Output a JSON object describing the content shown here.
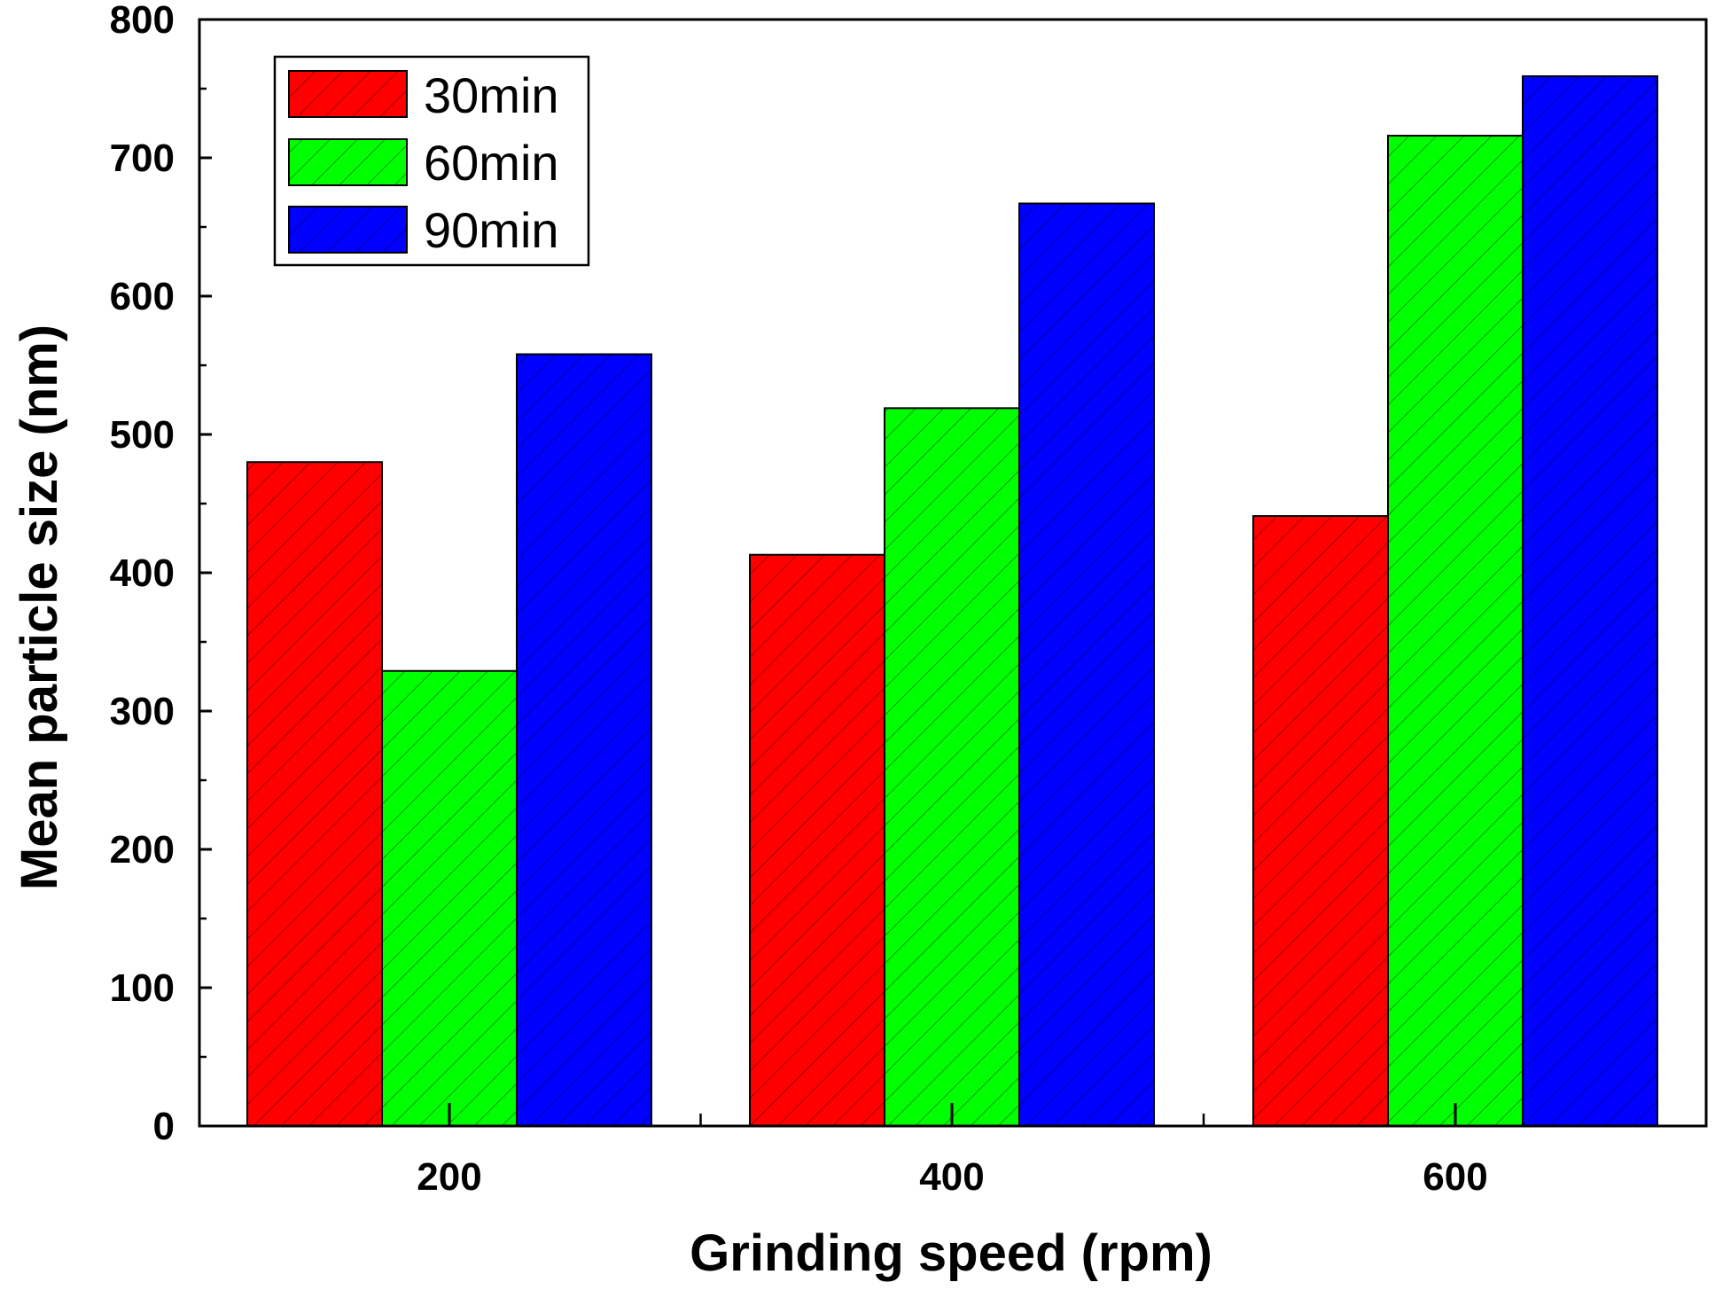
{
  "chart_data": {
    "type": "bar",
    "title": "",
    "xlabel": "Grinding speed (rpm)",
    "ylabel": "Mean particle size (nm)",
    "categories": [
      "200",
      "400",
      "600"
    ],
    "series": [
      {
        "name": "30min",
        "color": "#ff0000",
        "values": [
          480,
          413,
          441
        ]
      },
      {
        "name": "60min",
        "color": "#00ff00",
        "values": [
          329,
          519,
          716
        ]
      },
      {
        "name": "90min",
        "color": "#0000ff",
        "values": [
          558,
          667,
          759
        ]
      }
    ],
    "ylim": [
      0,
      800
    ],
    "yticks": [
      "0",
      "100",
      "200",
      "300",
      "400",
      "500",
      "600",
      "700",
      "800"
    ],
    "grid": false,
    "hatch": "diagonal",
    "legend_position": "top-left"
  }
}
